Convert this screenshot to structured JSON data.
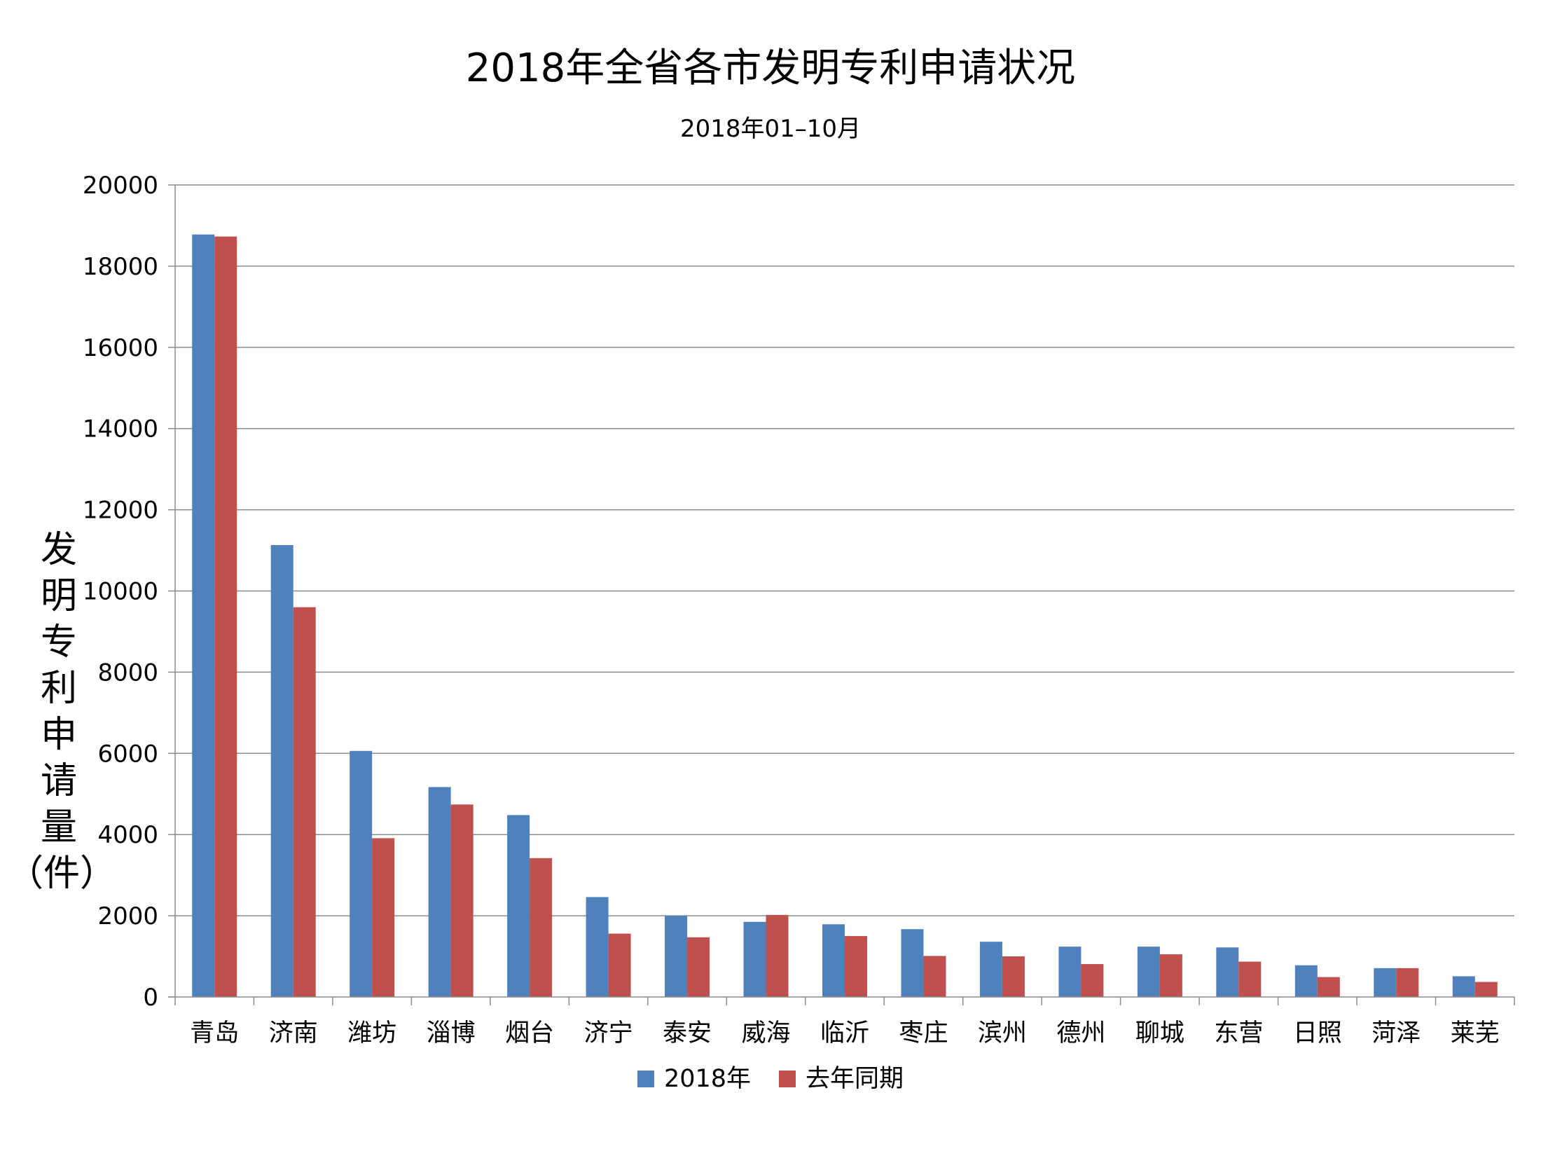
{
  "chart_data": {
    "type": "bar",
    "title": "2018年全省各市发明专利申请状况",
    "subtitle": "2018年01–10月",
    "ylabel": "发明专利申请量",
    "ylabel_unit": "（件）",
    "xlabel": "",
    "ylim": [
      0,
      20000
    ],
    "yticks": [
      0,
      2000,
      4000,
      6000,
      8000,
      10000,
      12000,
      14000,
      16000,
      18000,
      20000
    ],
    "grid": true,
    "legend_position": "bottom",
    "categories": [
      "青岛",
      "济南",
      "潍坊",
      "淄博",
      "烟台",
      "济宁",
      "泰安",
      "威海",
      "临沂",
      "枣庄",
      "滨州",
      "德州",
      "聊城",
      "东营",
      "日照",
      "菏泽",
      "莱芜"
    ],
    "series": [
      {
        "name": "2018年",
        "color": "#4f81bd",
        "values": [
          18780,
          11130,
          6060,
          5170,
          4480,
          2460,
          2000,
          1850,
          1790,
          1670,
          1360,
          1240,
          1240,
          1220,
          780,
          710,
          510
        ]
      },
      {
        "name": "去年同期",
        "color": "#c0504d",
        "values": [
          18730,
          9600,
          3910,
          4740,
          3420,
          1560,
          1470,
          2020,
          1500,
          1010,
          1000,
          810,
          1050,
          870,
          490,
          710,
          370
        ]
      }
    ]
  }
}
